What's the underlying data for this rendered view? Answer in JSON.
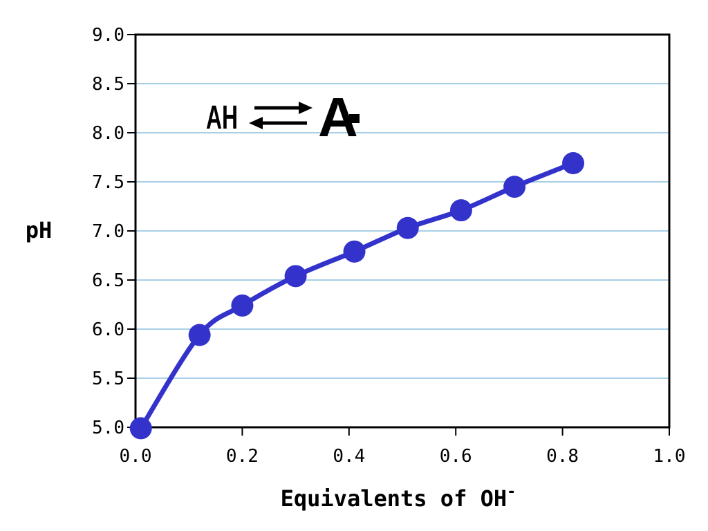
{
  "chart_data": {
    "type": "line",
    "title": "",
    "xlabel": "Equivalents of OH",
    "xlabel_superscript": "-",
    "ylabel": "pH",
    "xlim": [
      0.0,
      1.0
    ],
    "ylim": [
      5.0,
      9.0
    ],
    "x_ticks": [
      "0.0",
      "0.2",
      "0.4",
      "0.6",
      "0.8",
      "1.0"
    ],
    "y_ticks": [
      "5.0",
      "5.5",
      "6.0",
      "6.5",
      "7.0",
      "7.5",
      "8.0",
      "8.5",
      "9.0"
    ],
    "grid": "horizontal",
    "series": [
      {
        "color": "#3333cc",
        "x": [
          0.01,
          0.12,
          0.2,
          0.3,
          0.41,
          0.51,
          0.61,
          0.71,
          0.82
        ],
        "y": [
          4.99,
          5.94,
          6.24,
          6.54,
          6.79,
          7.03,
          7.21,
          7.45,
          7.69
        ]
      }
    ],
    "annotation": {
      "reactant": "AH",
      "product": "A",
      "charge": "-"
    },
    "colors": {
      "line": "#3333cc",
      "grid": "#a8cfe8",
      "axis": "#000000"
    }
  }
}
